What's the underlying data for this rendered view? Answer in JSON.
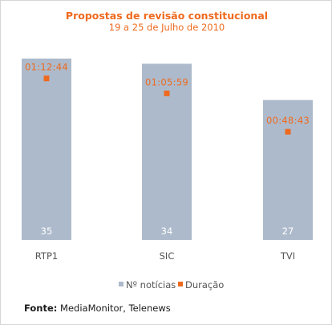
{
  "chart_data": {
    "type": "bar",
    "title": "Propostas de revisão constitucional",
    "subtitle": "19 a 25 de Julho de 2010",
    "categories": [
      "RTP1",
      "SIC",
      "TVI"
    ],
    "series": [
      {
        "name": "Nº notícias",
        "type": "bar",
        "color": "#adbacb",
        "values": [
          35,
          34,
          27
        ]
      },
      {
        "name": "Duração",
        "type": "marker",
        "color": "#ee6a1f",
        "values": [
          "01:12:44",
          "01:05:59",
          "00:48:43"
        ],
        "seconds": [
          4364,
          3959,
          2923
        ]
      }
    ],
    "ylim": [
      0,
      35
    ],
    "duration_ylim_seconds": [
      0,
      4900
    ],
    "grid": false,
    "legend": "bottom-center"
  },
  "source": {
    "label": "Fonte:",
    "text": "MediaMonitor, Telenews"
  }
}
